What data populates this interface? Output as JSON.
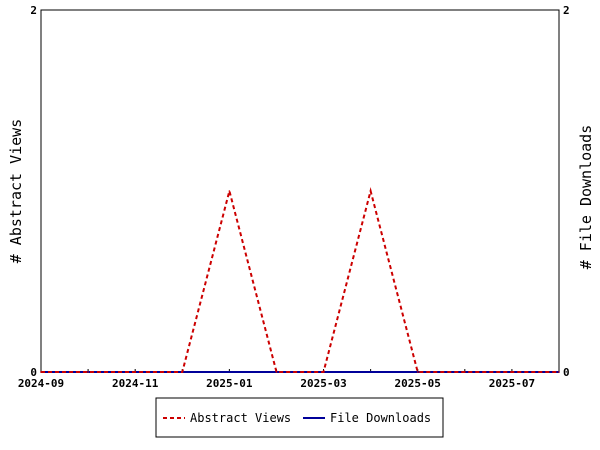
{
  "chart_data": {
    "type": "line",
    "x": [
      "2024-09",
      "2024-10",
      "2024-11",
      "2024-12",
      "2025-01",
      "2025-02",
      "2025-03",
      "2025-04",
      "2025-05",
      "2025-06",
      "2025-07",
      "2025-08"
    ],
    "xlim": [
      "2024-09",
      "2025-08"
    ],
    "x_tick_labels": [
      "2024-09",
      "2024-11",
      "2025-01",
      "2025-03",
      "2025-05",
      "2025-07"
    ],
    "ylim": [
      0,
      2
    ],
    "y_left_ticks": [
      "0",
      "2"
    ],
    "y_right_ticks": [
      "0",
      "2"
    ],
    "ylabel": "# Abstract Views",
    "ylabel_right": "# File Downloads",
    "legend_position": "bottom-center",
    "series": [
      {
        "name": "Abstract Views",
        "axis": "left",
        "color": "#cc0000",
        "dash": "dashed",
        "values": [
          0,
          0,
          0,
          0,
          1,
          0,
          0,
          1,
          0,
          0,
          0,
          0
        ]
      },
      {
        "name": "File Downloads",
        "axis": "right",
        "color": "#000099",
        "dash": "solid",
        "values": [
          0,
          0,
          0,
          0,
          0,
          0,
          0,
          0,
          0,
          0,
          0,
          0
        ]
      }
    ]
  }
}
